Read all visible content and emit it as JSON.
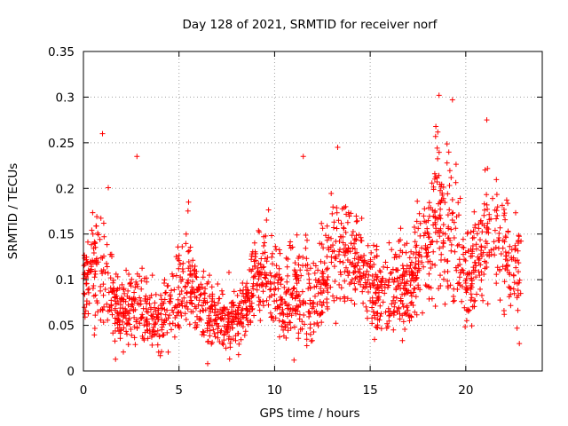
{
  "chart_data": {
    "type": "scatter",
    "title": "Day 128 of 2021, SRMTID for receiver norf",
    "xlabel": "GPS time / hours",
    "ylabel": "SRMTID / TECUs",
    "xlim": [
      0,
      24
    ],
    "ylim": [
      0,
      0.35
    ],
    "x_ticks": [
      0,
      5,
      10,
      15,
      20
    ],
    "x_tick_labels": [
      "0",
      "5",
      "10",
      "15",
      "20"
    ],
    "y_ticks": [
      0,
      0.05,
      0.1,
      0.15,
      0.2,
      0.25,
      0.3,
      0.35
    ],
    "y_tick_labels": [
      "0",
      "0.05",
      "0.1",
      "0.15",
      "0.2",
      "0.25",
      "0.3",
      "0.35"
    ],
    "grid": true,
    "marker": "+",
    "series": [
      {
        "name": "SRMTID",
        "color": "#ff0000",
        "x_range": [
          0,
          22.9
        ],
        "approx_profile": [
          [
            0.0,
            0.1,
            0.04
          ],
          [
            0.5,
            0.11,
            0.045
          ],
          [
            1.0,
            0.13,
            0.06
          ],
          [
            1.5,
            0.08,
            0.035
          ],
          [
            2.0,
            0.06,
            0.02
          ],
          [
            2.5,
            0.07,
            0.03
          ],
          [
            3.0,
            0.08,
            0.035
          ],
          [
            3.5,
            0.06,
            0.02
          ],
          [
            4.0,
            0.055,
            0.02
          ],
          [
            4.5,
            0.065,
            0.025
          ],
          [
            5.0,
            0.08,
            0.03
          ],
          [
            5.5,
            0.1,
            0.035
          ],
          [
            6.0,
            0.07,
            0.025
          ],
          [
            6.5,
            0.06,
            0.02
          ],
          [
            7.0,
            0.055,
            0.02
          ],
          [
            7.5,
            0.05,
            0.02
          ],
          [
            8.0,
            0.05,
            0.02
          ],
          [
            8.5,
            0.07,
            0.025
          ],
          [
            9.0,
            0.1,
            0.03
          ],
          [
            9.5,
            0.11,
            0.03
          ],
          [
            10.0,
            0.09,
            0.03
          ],
          [
            10.5,
            0.07,
            0.03
          ],
          [
            11.0,
            0.08,
            0.035
          ],
          [
            11.5,
            0.09,
            0.04
          ],
          [
            12.0,
            0.08,
            0.03
          ],
          [
            12.5,
            0.09,
            0.03
          ],
          [
            13.0,
            0.12,
            0.04
          ],
          [
            13.5,
            0.13,
            0.045
          ],
          [
            14.0,
            0.13,
            0.035
          ],
          [
            14.5,
            0.12,
            0.035
          ],
          [
            15.0,
            0.1,
            0.035
          ],
          [
            15.5,
            0.08,
            0.03
          ],
          [
            16.0,
            0.08,
            0.03
          ],
          [
            16.5,
            0.09,
            0.03
          ],
          [
            17.0,
            0.09,
            0.03
          ],
          [
            17.5,
            0.12,
            0.035
          ],
          [
            18.0,
            0.14,
            0.045
          ],
          [
            18.5,
            0.17,
            0.06
          ],
          [
            19.0,
            0.16,
            0.055
          ],
          [
            19.5,
            0.13,
            0.05
          ],
          [
            20.0,
            0.1,
            0.035
          ],
          [
            20.5,
            0.11,
            0.035
          ],
          [
            21.0,
            0.14,
            0.05
          ],
          [
            21.5,
            0.15,
            0.045
          ],
          [
            22.0,
            0.13,
            0.04
          ],
          [
            22.5,
            0.11,
            0.035
          ],
          [
            22.9,
            0.12,
            0.035
          ]
        ],
        "notable_points": [
          {
            "x": 1.0,
            "y": 0.26
          },
          {
            "x": 2.8,
            "y": 0.235
          },
          {
            "x": 5.5,
            "y": 0.185
          },
          {
            "x": 6.5,
            "y": 0.008
          },
          {
            "x": 11.5,
            "y": 0.235
          },
          {
            "x": 13.3,
            "y": 0.245
          },
          {
            "x": 18.6,
            "y": 0.302
          },
          {
            "x": 19.3,
            "y": 0.297
          },
          {
            "x": 21.1,
            "y": 0.275
          },
          {
            "x": 22.8,
            "y": 0.03
          }
        ]
      }
    ]
  }
}
